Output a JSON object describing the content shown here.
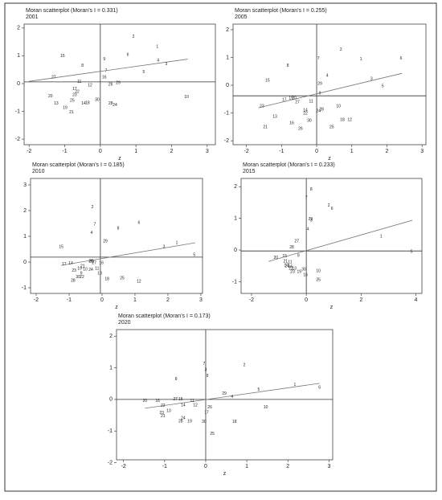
{
  "chart_data": [
    {
      "type": "scatter",
      "title": "Moran scatterplot (Moran's I = 0.331)",
      "subtitle": "2001",
      "x_label": "z",
      "xlim": [
        -2.14,
        3.23
      ],
      "ylim": [
        -2.2,
        2.14
      ],
      "xticks": [
        -2,
        -1,
        0,
        1,
        2,
        3
      ],
      "yticks": [
        -2,
        -1,
        0,
        1,
        2
      ],
      "ref_x": 0,
      "ref_y": 0.06,
      "fit": {
        "x": [
          -2,
          2.45
        ],
        "y": [
          0.08,
          0.88
        ]
      },
      "series": [
        {
          "labels": [
            "2",
            "1",
            "6",
            "4",
            "3",
            "15",
            "9",
            "8",
            "7",
            "5",
            "27",
            "16",
            "11",
            "29",
            "26",
            "12",
            "17",
            "22",
            "23",
            "20",
            "30",
            "25",
            "13",
            "18",
            "14",
            "28",
            "24",
            "19",
            "21",
            "10"
          ],
          "x": [
            0.93,
            1.6,
            0.77,
            1.62,
            1.85,
            -1.06,
            0.11,
            -0.5,
            0.16,
            1.22,
            -1.31,
            0.11,
            -0.59,
            0.5,
            0.29,
            -0.29,
            -0.72,
            -0.65,
            -0.72,
            -1.4,
            -0.09,
            -0.79,
            -1.24,
            -0.36,
            -0.47,
            0.29,
            0.41,
            -0.99,
            -0.81,
            2.42
          ],
          "y": [
            1.68,
            1.33,
            1.04,
            0.84,
            0.7,
            0.99,
            0.87,
            0.64,
            0.46,
            0.41,
            0.23,
            0.23,
            0.06,
            0.03,
            -0.03,
            -0.06,
            -0.2,
            -0.29,
            -0.41,
            -0.46,
            -0.58,
            -0.61,
            -0.72,
            -0.7,
            -0.72,
            -0.72,
            -0.78,
            -0.87,
            -1.04,
            -0.49
          ]
        }
      ]
    },
    {
      "type": "scatter",
      "title": "Moran scatterplot (Moran's I = 0.255)",
      "subtitle": "2005",
      "x_label": "z",
      "xlim": [
        -2.38,
        3.11
      ],
      "ylim": [
        -2.14,
        2.2
      ],
      "xticks": [
        -2,
        -1,
        0,
        1,
        2,
        3
      ],
      "yticks": [
        -2,
        -1,
        0,
        1,
        2
      ],
      "ref_x": 0,
      "ref_y": -0.38,
      "fit": {
        "x": [
          -1.65,
          2.43
        ],
        "y": [
          -0.81,
          0.43
        ]
      },
      "series": [
        {
          "labels": [
            "2",
            "1",
            "6",
            "7",
            "8",
            "4",
            "3",
            "15",
            "29",
            "5",
            "9",
            "17",
            "19",
            "20",
            "27",
            "11",
            "23",
            "10",
            "14",
            "28",
            "24",
            "22",
            "13",
            "18",
            "12",
            "30",
            "16",
            "21",
            "26",
            "25"
          ],
          "x": [
            0.69,
            1.26,
            2.4,
            0.05,
            -0.82,
            0.3,
            1.56,
            -1.4,
            0.09,
            1.88,
            0.09,
            -0.92,
            -0.73,
            -0.64,
            -0.55,
            -0.16,
            -1.56,
            0.62,
            -0.32,
            0.14,
            0.05,
            -0.32,
            -1.19,
            0.73,
            0.94,
            -0.21,
            -0.71,
            -1.46,
            -0.46,
            0.43
          ],
          "y": [
            1.28,
            0.93,
            0.96,
            0.96,
            0.7,
            0.35,
            0.23,
            0.17,
            0.06,
            -0.03,
            -0.29,
            -0.52,
            -0.46,
            -0.46,
            -0.61,
            -0.58,
            -0.75,
            -0.75,
            -0.9,
            -0.87,
            -0.93,
            -1.01,
            -1.13,
            -1.25,
            -1.25,
            -1.28,
            -1.36,
            -1.51,
            -1.57,
            -1.51
          ]
        }
      ]
    },
    {
      "type": "scatter",
      "title": "Moran scatterplot (Moran's I = 0.185)",
      "subtitle": "2010",
      "x_label": "z",
      "xlim": [
        -2.17,
        3.05
      ],
      "ylim": [
        -1.22,
        3.25
      ],
      "xticks": [
        -2,
        -1,
        0,
        1,
        2,
        3
      ],
      "yticks": [
        -1,
        0,
        1,
        2,
        3
      ],
      "ref_x": -0.05,
      "ref_y": 0.19,
      "fit": {
        "x": [
          -1.24,
          2.83
        ],
        "y": [
          -0.13,
          0.75
        ]
      },
      "series": [
        {
          "labels": [
            "2",
            "7",
            "6",
            "8",
            "4",
            "29",
            "15",
            "1",
            "3",
            "5",
            "17",
            "14",
            "20",
            "27",
            "16",
            "21",
            "19",
            "11",
            "26",
            "23",
            "9",
            "10",
            "24",
            "22",
            "30",
            "13",
            "28",
            "18",
            "25",
            "12"
          ],
          "x": [
            -0.29,
            -0.22,
            1.12,
            0.49,
            -0.32,
            0.1,
            -1.24,
            2.27,
            1.88,
            2.8,
            -1.15,
            -0.95,
            -0.32,
            -0.24,
            -0.02,
            -0.59,
            -0.68,
            -0.15,
            -0.34,
            -0.85,
            -0.63,
            -0.51,
            -0.34,
            -0.61,
            -0.73,
            -0.07,
            -0.88,
            0.15,
            0.61,
            1.12
          ],
          "y": [
            2.13,
            1.47,
            1.53,
            1.31,
            1.13,
            0.81,
            0.59,
            0.75,
            0.59,
            0.28,
            -0.09,
            -0.06,
            0.03,
            -0.03,
            -0.03,
            -0.16,
            -0.25,
            -0.25,
            0.03,
            -0.34,
            -0.44,
            -0.28,
            -0.31,
            -0.59,
            -0.59,
            -0.44,
            -0.72,
            -0.66,
            -0.63,
            -0.75
          ]
        }
      ]
    },
    {
      "type": "scatter",
      "title": "Moran scatterplot (Moran's I = 0.233)",
      "subtitle": "2015",
      "x_label": "z",
      "xlim": [
        -2.38,
        4.22
      ],
      "ylim": [
        -1.37,
        2.26
      ],
      "xticks": [
        -2,
        0,
        2,
        4
      ],
      "yticks": [
        -1,
        0,
        1,
        2
      ],
      "ref_x": 0,
      "ref_y": -0.03,
      "fit": {
        "x": [
          -1.38,
          3.87
        ],
        "y": [
          -0.36,
          0.94
        ]
      },
      "series": [
        {
          "labels": [
            "8",
            "7",
            "2",
            "6",
            "29",
            "3",
            "4",
            "1",
            "27",
            "28",
            "5",
            "20",
            "15",
            "9",
            "21",
            "11",
            "24",
            "14",
            "17",
            "22",
            "13",
            "30",
            "23",
            "19",
            "10",
            "16",
            "25"
          ],
          "x": [
            0.18,
            0,
            0.82,
            0.94,
            0.15,
            0.18,
            0.06,
            2.73,
            -0.35,
            -0.53,
            3.84,
            -1.11,
            -0.79,
            -0.29,
            -0.76,
            -0.59,
            -0.7,
            -0.59,
            -0.73,
            -0.56,
            -0.44,
            -0.09,
            -0.5,
            -0.26,
            0.44,
            -0.03,
            0.44
          ],
          "y": [
            1.91,
            1.65,
            1.4,
            1.3,
            0.97,
            0.94,
            0.66,
            0.43,
            0.28,
            0.08,
            -0.05,
            -0.25,
            -0.2,
            -0.18,
            -0.36,
            -0.38,
            -0.51,
            -0.53,
            -0.48,
            -0.59,
            -0.59,
            -0.61,
            -0.69,
            -0.69,
            -0.66,
            -0.79,
            -0.94
          ]
        }
      ]
    },
    {
      "type": "scatter",
      "title": "Moran scatterplot (Moran's I = 0.173)",
      "subtitle": "2020",
      "x_label": "z",
      "xlim": [
        -2.17,
        3.09
      ],
      "ylim": [
        -1.91,
        2.21
      ],
      "xticks": [
        -2,
        -1,
        0,
        1,
        2,
        3
      ],
      "yticks": [
        -2,
        -1,
        0,
        1,
        2
      ],
      "ref_x": 0,
      "ref_y": 0,
      "fit": {
        "x": [
          -1.48,
          2.77
        ],
        "y": [
          -0.28,
          0.51
        ]
      },
      "series": [
        {
          "labels": [
            "7",
            "2",
            "3",
            "9",
            "8",
            "29",
            "5",
            "1",
            "6",
            "4",
            "20",
            "16",
            "27",
            "15",
            "11",
            "10",
            "22",
            "14",
            "12",
            "26",
            "13",
            "17",
            "23",
            "21",
            "24",
            "28",
            "19",
            "30",
            "18",
            "25"
          ],
          "x": [
            -0.04,
            0.94,
            0,
            0.04,
            -0.72,
            0.45,
            1.29,
            2.17,
            2.77,
            0.64,
            -1.48,
            -1.17,
            -0.74,
            -0.61,
            -0.33,
            1.46,
            -1.04,
            -0.55,
            -0.25,
            0.1,
            -0.9,
            0.02,
            -1.07,
            -1.04,
            -0.55,
            -0.61,
            -0.39,
            -0.04,
            0.7,
            0.16
          ],
          "y": [
            1.12,
            1.09,
            0.94,
            0.74,
            0.64,
            0.18,
            0.31,
            0.46,
            0.38,
            0.08,
            -0.05,
            -0.05,
            0,
            0,
            -0.05,
            -0.25,
            -0.2,
            -0.18,
            -0.18,
            -0.25,
            -0.36,
            -0.41,
            -0.43,
            -0.53,
            -0.59,
            -0.69,
            -0.69,
            -0.71,
            -0.71,
            -1.09
          ]
        }
      ]
    }
  ]
}
